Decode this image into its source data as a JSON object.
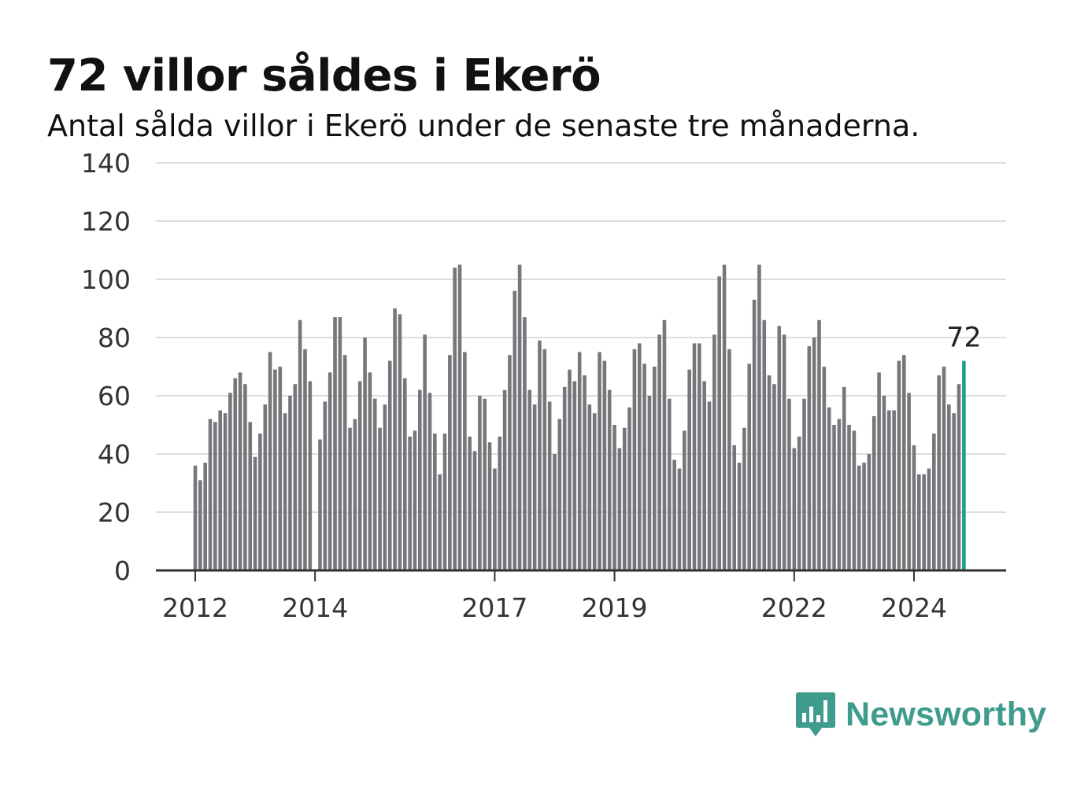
{
  "header": {
    "title": "72 villor såldes i Ekerö",
    "subtitle": "Antal sålda villor i Ekerö under de senaste tre månaderna."
  },
  "brand": {
    "name": "Newsworthy",
    "icon": "newsworthy-bar-icon",
    "color": "#3f9b8c"
  },
  "colors": {
    "bar": "#77767b",
    "highlight": "#1e9e92",
    "grid": "#dddddd",
    "axis": "#333333",
    "text": "#333333"
  },
  "chart_data": {
    "type": "bar",
    "title": "72 villor såldes i Ekerö",
    "subtitle": "Antal sålda villor i Ekerö under de senaste tre månaderna.",
    "start": "2012-01",
    "frequency": "monthly",
    "ylim": [
      0,
      140
    ],
    "yticks": [
      0,
      20,
      40,
      60,
      80,
      100,
      120,
      140
    ],
    "xtick_labels": [
      "2012",
      "2014",
      "2017",
      "2019",
      "2022",
      "2024"
    ],
    "grid": true,
    "highlight_last": true,
    "last_label": "72",
    "values": [
      36,
      31,
      37,
      52,
      51,
      55,
      54,
      61,
      66,
      68,
      64,
      51,
      39,
      47,
      57,
      75,
      69,
      70,
      54,
      60,
      64,
      86,
      76,
      65,
      0,
      45,
      58,
      68,
      87,
      87,
      74,
      49,
      52,
      65,
      80,
      68,
      59,
      49,
      57,
      72,
      90,
      88,
      66,
      46,
      48,
      62,
      81,
      61,
      47,
      33,
      47,
      74,
      104,
      105,
      75,
      46,
      41,
      60,
      59,
      44,
      35,
      46,
      62,
      74,
      96,
      105,
      87,
      62,
      57,
      79,
      76,
      58,
      40,
      52,
      63,
      69,
      65,
      75,
      67,
      57,
      54,
      75,
      72,
      62,
      50,
      42,
      49,
      56,
      76,
      78,
      71,
      60,
      70,
      81,
      86,
      59,
      38,
      35,
      48,
      69,
      78,
      78,
      65,
      58,
      81,
      101,
      105,
      76,
      43,
      37,
      49,
      71,
      93,
      105,
      86,
      67,
      64,
      84,
      81,
      59,
      42,
      46,
      59,
      77,
      80,
      86,
      70,
      56,
      50,
      52,
      63,
      50,
      48,
      36,
      37,
      40,
      53,
      68,
      60,
      55,
      55,
      72,
      74,
      61,
      43,
      33,
      33,
      35,
      47,
      67,
      70,
      57,
      54,
      64,
      72
    ]
  }
}
